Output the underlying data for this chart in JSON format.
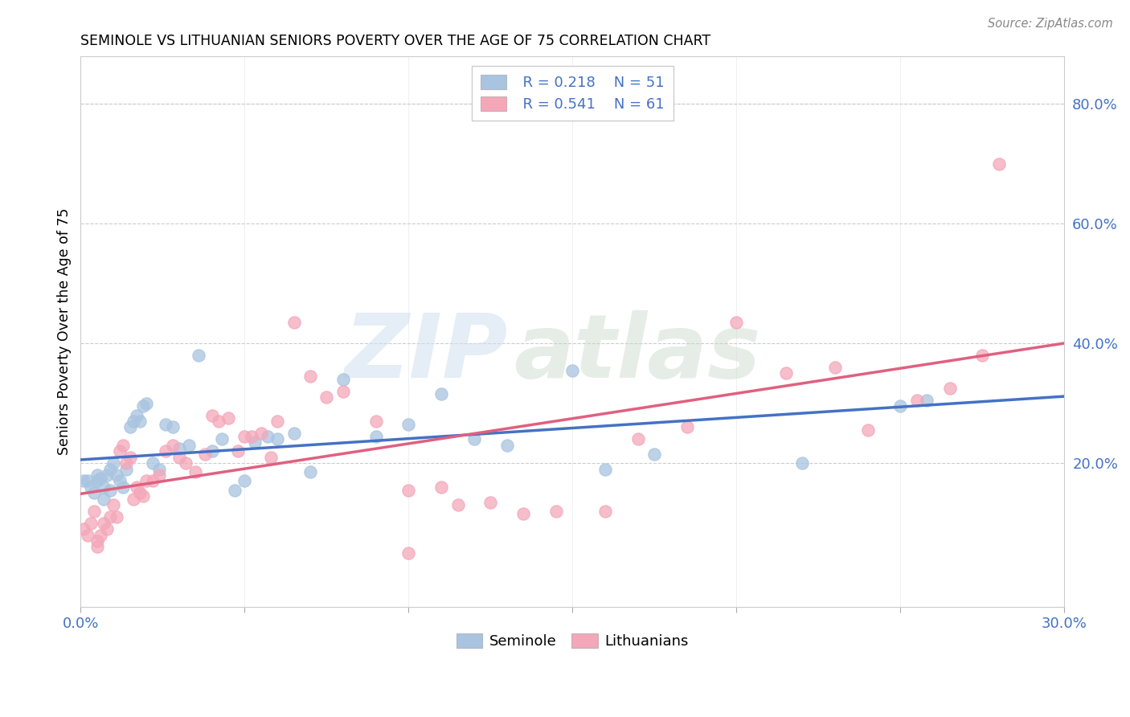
{
  "title": "SEMINOLE VS LITHUANIAN SENIORS POVERTY OVER THE AGE OF 75 CORRELATION CHART",
  "source": "Source: ZipAtlas.com",
  "ylabel": "Seniors Poverty Over the Age of 75",
  "xlim": [
    0.0,
    0.3
  ],
  "ylim": [
    -0.04,
    0.88
  ],
  "xticks": [
    0.0,
    0.05,
    0.1,
    0.15,
    0.2,
    0.25,
    0.3
  ],
  "xticklabels": [
    "0.0%",
    "",
    "",
    "",
    "",
    "",
    "30.0%"
  ],
  "yticks_right": [
    0.2,
    0.4,
    0.6,
    0.8
  ],
  "ytick_labels_right": [
    "20.0%",
    "40.0%",
    "60.0%",
    "80.0%"
  ],
  "seminole_color": "#a8c4e0",
  "lithuanian_color": "#f4a7b9",
  "seminole_line_color": "#4472C4",
  "lithuanian_line_color": "#E06080",
  "legend_r_seminole": "R = 0.218",
  "legend_n_seminole": "N = 51",
  "legend_r_lithuanian": "R = 0.541",
  "legend_n_lithuanian": "N = 61",
  "watermark_zip": "ZIP",
  "watermark_atlas": "atlas",
  "seminole_x": [
    0.001,
    0.002,
    0.003,
    0.004,
    0.005,
    0.005,
    0.006,
    0.007,
    0.007,
    0.008,
    0.009,
    0.009,
    0.01,
    0.011,
    0.012,
    0.013,
    0.014,
    0.015,
    0.016,
    0.017,
    0.018,
    0.019,
    0.02,
    0.022,
    0.024,
    0.026,
    0.028,
    0.03,
    0.033,
    0.036,
    0.04,
    0.043,
    0.047,
    0.05,
    0.053,
    0.057,
    0.06,
    0.065,
    0.07,
    0.08,
    0.09,
    0.1,
    0.11,
    0.12,
    0.13,
    0.15,
    0.16,
    0.175,
    0.22,
    0.25,
    0.258
  ],
  "seminole_y": [
    0.17,
    0.17,
    0.16,
    0.15,
    0.17,
    0.18,
    0.175,
    0.16,
    0.14,
    0.18,
    0.155,
    0.19,
    0.2,
    0.18,
    0.17,
    0.16,
    0.19,
    0.26,
    0.27,
    0.28,
    0.27,
    0.295,
    0.3,
    0.2,
    0.19,
    0.265,
    0.26,
    0.225,
    0.23,
    0.38,
    0.22,
    0.24,
    0.155,
    0.17,
    0.235,
    0.245,
    0.24,
    0.25,
    0.185,
    0.34,
    0.245,
    0.265,
    0.315,
    0.24,
    0.23,
    0.355,
    0.19,
    0.215,
    0.2,
    0.295,
    0.305
  ],
  "lithuanian_x": [
    0.001,
    0.002,
    0.003,
    0.004,
    0.005,
    0.005,
    0.006,
    0.007,
    0.008,
    0.009,
    0.01,
    0.011,
    0.012,
    0.013,
    0.014,
    0.015,
    0.016,
    0.017,
    0.018,
    0.019,
    0.02,
    0.022,
    0.024,
    0.026,
    0.028,
    0.03,
    0.032,
    0.035,
    0.038,
    0.04,
    0.042,
    0.045,
    0.048,
    0.05,
    0.052,
    0.055,
    0.058,
    0.06,
    0.065,
    0.07,
    0.075,
    0.08,
    0.09,
    0.1,
    0.11,
    0.115,
    0.125,
    0.135,
    0.145,
    0.16,
    0.17,
    0.185,
    0.2,
    0.215,
    0.23,
    0.24,
    0.255,
    0.265,
    0.275,
    0.28,
    0.1
  ],
  "lithuanian_y": [
    0.09,
    0.08,
    0.1,
    0.12,
    0.06,
    0.07,
    0.08,
    0.1,
    0.09,
    0.11,
    0.13,
    0.11,
    0.22,
    0.23,
    0.2,
    0.21,
    0.14,
    0.16,
    0.15,
    0.145,
    0.17,
    0.17,
    0.18,
    0.22,
    0.23,
    0.21,
    0.2,
    0.185,
    0.215,
    0.28,
    0.27,
    0.275,
    0.22,
    0.245,
    0.245,
    0.25,
    0.21,
    0.27,
    0.435,
    0.345,
    0.31,
    0.32,
    0.27,
    0.155,
    0.16,
    0.13,
    0.135,
    0.115,
    0.12,
    0.12,
    0.24,
    0.26,
    0.435,
    0.35,
    0.36,
    0.255,
    0.305,
    0.325,
    0.38,
    0.7,
    0.05
  ],
  "background_color": "#ffffff",
  "grid_color": "#cccccc"
}
